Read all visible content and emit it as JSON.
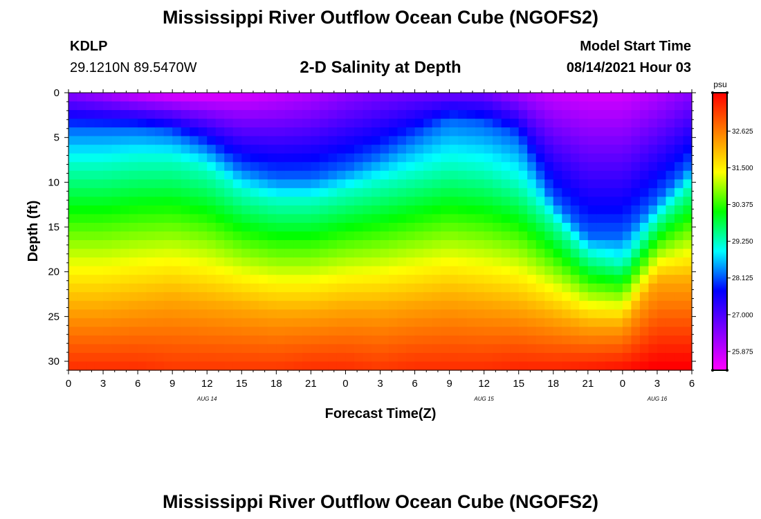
{
  "header": {
    "title": "Mississippi River Outflow Ocean Cube (NGOFS2)",
    "station_id": "KDLP",
    "coords": "29.1210N  89.5470W",
    "subtitle": "2-D Salinity at Depth",
    "model_start_label": "Model Start Time",
    "model_start_value": "08/14/2021 Hour 03"
  },
  "footer": {
    "title": "Mississippi River Outflow Ocean Cube (NGOFS2)"
  },
  "chart_data": {
    "type": "heatmap",
    "title": "2-D Salinity at Depth",
    "xlabel": "Forecast Time(Z)",
    "ylabel": "Depth (ft)",
    "x_range_hours": [
      0,
      54
    ],
    "x_tick_labels": [
      "0",
      "3",
      "6",
      "9",
      "12",
      "15",
      "18",
      "21",
      "0",
      "3",
      "6",
      "9",
      "12",
      "15",
      "18",
      "21",
      "0",
      "3",
      "6"
    ],
    "day_labels": [
      {
        "hour": 12,
        "label": "AUG 14"
      },
      {
        "hour": 36,
        "label": "AUG 15"
      },
      {
        "hour": 51,
        "label": "AUG 16"
      }
    ],
    "y_range_ft": [
      0,
      31
    ],
    "y_tick_labels": [
      "0",
      "5",
      "10",
      "15",
      "20",
      "25",
      "30"
    ],
    "colorbar": {
      "unit": "psu",
      "min": 25.3,
      "max": 33.8,
      "tick_labels": [
        "32.625",
        "31.500",
        "30.375",
        "29.250",
        "28.125",
        "27.000",
        "25.875"
      ],
      "tick_values": [
        32.625,
        31.5,
        30.375,
        29.25,
        28.125,
        27.0,
        25.875
      ],
      "colors": [
        "#ff00ff",
        "#8000ff",
        "#0000ff",
        "#00ffff",
        "#00ff00",
        "#ffff00",
        "#ff8000",
        "#ff0000"
      ]
    },
    "isohalines": {
      "hours": [
        0,
        3,
        6,
        9,
        12,
        15,
        18,
        21,
        24,
        27,
        30,
        33,
        36,
        39,
        42,
        45,
        48,
        51,
        54
      ],
      "depth_28_ft": [
        4,
        4,
        4,
        4.5,
        6,
        8.5,
        9.5,
        9.5,
        8.5,
        7,
        5,
        3,
        3.5,
        5,
        12,
        16,
        16,
        12,
        8
      ],
      "depth_29_ft": [
        8,
        8,
        7.5,
        7.5,
        8.5,
        11,
        12,
        12,
        11,
        10,
        9,
        8,
        8.5,
        10,
        14,
        18,
        19,
        14,
        10
      ],
      "depth_32_ft": [
        24,
        24,
        23.5,
        23,
        23.5,
        24,
        24.5,
        24.5,
        24,
        24,
        23.5,
        23,
        23.5,
        24,
        25,
        26,
        26,
        21,
        21
      ]
    },
    "surface_salinity": [
      26.4,
      26.1,
      25.7,
      25.5,
      25.5,
      25.6,
      25.8,
      26.0,
      26.3,
      26.5,
      26.6,
      26.6,
      26.6,
      26.1,
      25.8,
      25.7,
      25.7,
      26.0,
      26.4
    ],
    "bottom_salinity": [
      33.4,
      33.4,
      33.4,
      33.3,
      33.3,
      33.3,
      33.3,
      33.4,
      33.4,
      33.3,
      33.4,
      33.4,
      33.4,
      33.5,
      33.5,
      33.6,
      33.7,
      33.9,
      33.9
    ]
  }
}
